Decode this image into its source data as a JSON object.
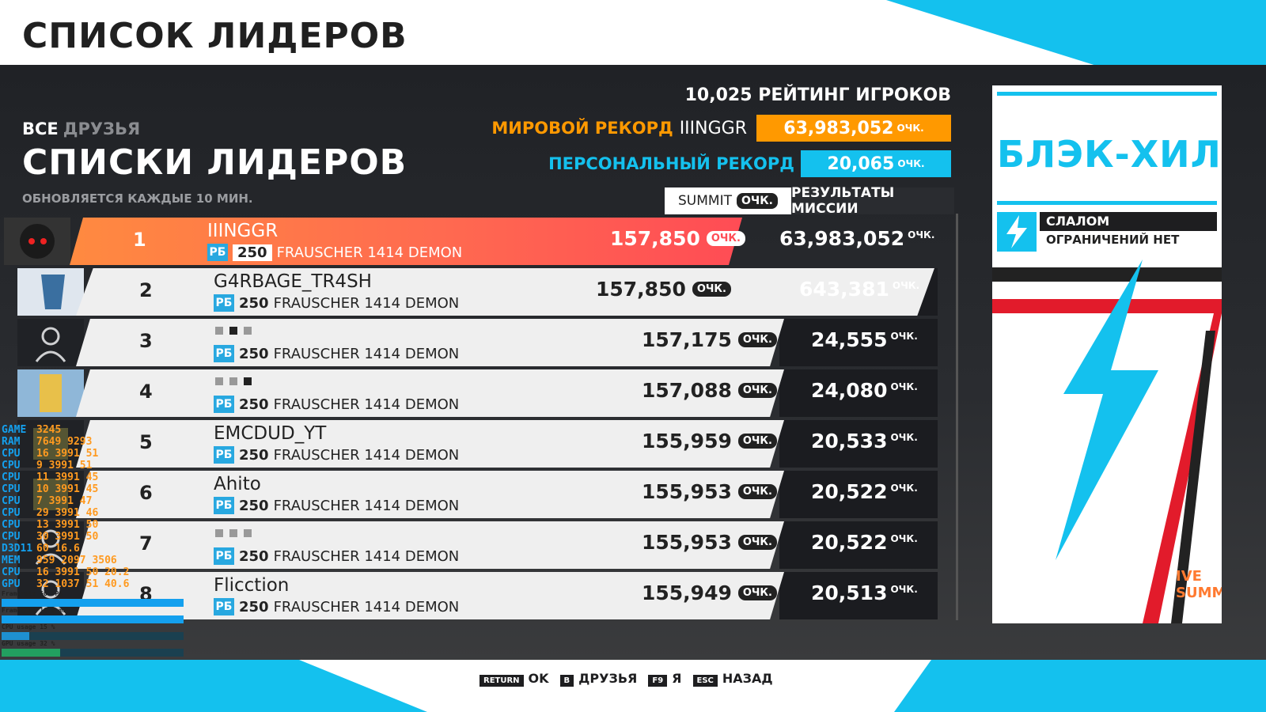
{
  "page_title": "СПИСОК ЛИДЕРОВ",
  "filter": {
    "all": "ВСЕ",
    "friends": "ДРУЗЬЯ"
  },
  "leaderboard_title": "СПИСКИ ЛИДЕРОВ",
  "update_note": "ОБНОВЛЯЕТСЯ КАЖДЫЕ 10 МИН.",
  "rating": {
    "count": "10,025",
    "label": "РЕЙТИНГ ИГРОКОВ"
  },
  "world_record": {
    "label": "МИРОВОЙ РЕКОРД",
    "holder": "IIINGGR",
    "value": "63,983,052",
    "unit": "ОЧК."
  },
  "personal_record": {
    "label": "ПЕРСОНАЛЬНЫЙ РЕКОРД",
    "value": "20,065",
    "unit": "ОЧК."
  },
  "tabs": {
    "summit": "SUMMIT",
    "summit_chip": "ОЧК.",
    "mission": "РЕЗУЛЬТАТЫ МИССИИ"
  },
  "colors": {
    "accent": "#14c1ee",
    "record": "#ff9900",
    "personal": "#14c1ee",
    "first": "#ff5a4f"
  },
  "rows": [
    {
      "rank": "1",
      "name": "IIINGGR",
      "pi": "250",
      "car": "FRAUSCHER 1414 DEMON",
      "score": "157,850",
      "unit": "ОЧК.",
      "total": "63,983,052",
      "total_unit": "ОЧК."
    },
    {
      "rank": "2",
      "name": "G4RBAGE_TR4SH",
      "pi": "250",
      "car": "FRAUSCHER 1414 DEMON",
      "score": "157,850",
      "unit": "ОЧК.",
      "total": "643,381",
      "total_unit": "ОЧК."
    },
    {
      "rank": "3",
      "name": "",
      "pi": "250",
      "car": "FRAUSCHER 1414 DEMON",
      "score": "157,175",
      "unit": "ОЧК.",
      "total": "24,555",
      "total_unit": "ОЧК."
    },
    {
      "rank": "4",
      "name": "",
      "pi": "250",
      "car": "FRAUSCHER 1414 DEMON",
      "score": "157,088",
      "unit": "ОЧК.",
      "total": "24,080",
      "total_unit": "ОЧК."
    },
    {
      "rank": "5",
      "name": "EMCDUD_YT",
      "pi": "250",
      "car": "FRAUSCHER 1414 DEMON",
      "score": "155,959",
      "unit": "ОЧК.",
      "total": "20,533",
      "total_unit": "ОЧК."
    },
    {
      "rank": "6",
      "name": "Ahito",
      "pi": "250",
      "car": "FRAUSCHER 1414 DEMON",
      "score": "155,953",
      "unit": "ОЧК.",
      "total": "20,522",
      "total_unit": "ОЧК."
    },
    {
      "rank": "7",
      "name": "",
      "pi": "250",
      "car": "FRAUSCHER 1414 DEMON",
      "score": "155,953",
      "unit": "ОЧК.",
      "total": "20,522",
      "total_unit": "ОЧК."
    },
    {
      "rank": "8",
      "name": "Flicction",
      "pi": "250",
      "car": "FRAUSCHER 1414 DEMON",
      "score": "155,949",
      "unit": "ОЧК.",
      "total": "20,513",
      "total_unit": "ОЧК."
    }
  ],
  "pi_class": "PБ",
  "event_card": {
    "track": "БЛЭК-ХИЛС",
    "type": "СЛАЛОМ",
    "restriction": "ОГРАНИЧЕНИЙ НЕТ",
    "logo": "IVE SUMMIT"
  },
  "footer": [
    {
      "key": "RETURN",
      "label": "OK"
    },
    {
      "key": "B",
      "label": "ДРУЗЬЯ"
    },
    {
      "key": "F9",
      "label": "Я"
    },
    {
      "key": "ESC",
      "label": "НАЗАД"
    }
  ],
  "perf_overlay": {
    "rows": [
      {
        "k": "GAME",
        "v": "3245"
      },
      {
        "k": "RAM",
        "v": "7649  9293"
      },
      {
        "k": "CPU",
        "v": "16  3991  51"
      },
      {
        "k": "CPU",
        "v": "9  3991  51"
      },
      {
        "k": "CPU",
        "v": "11  3991  45"
      },
      {
        "k": "CPU",
        "v": "10  3991  45"
      },
      {
        "k": "CPU",
        "v": "7  3991  47"
      },
      {
        "k": "CPU",
        "v": "29  3991  46"
      },
      {
        "k": "CPU",
        "v": "13  3991  50"
      },
      {
        "k": "CPU",
        "v": "30  3991  50"
      },
      {
        "k": "D3D11",
        "v": "60  16.6"
      },
      {
        "k": "MEM",
        "v": "959  2097  3506"
      },
      {
        "k": "CPU",
        "v": "16  3991  50  20.2"
      },
      {
        "k": "GPU",
        "v": "32  1037  51  40.6"
      }
    ],
    "graphs": [
      {
        "label": "Framerate",
        "value": "60 FPS"
      },
      {
        "label": "Frametime",
        "value": "16.6 ms"
      },
      {
        "label": "CPU usage",
        "value": "15 %"
      },
      {
        "label": "GPU usage",
        "value": "32 %"
      }
    ]
  }
}
